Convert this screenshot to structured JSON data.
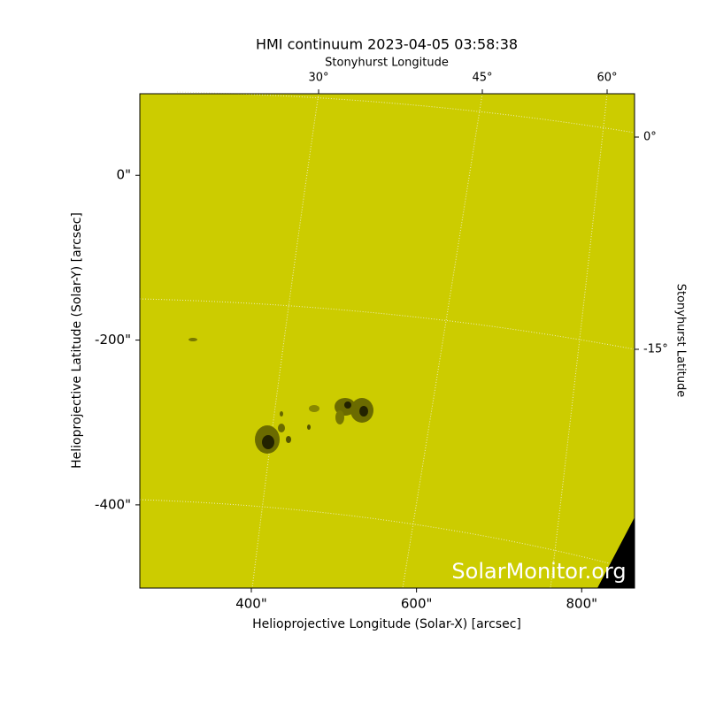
{
  "chart_data": {
    "type": "image",
    "title": "HMI continuum 2023-04-05 03:58:38",
    "xlabel": "Helioprojective Longitude (Solar-X) [arcsec]",
    "ylabel": "Helioprojective Latitude (Solar-Y) [arcsec]",
    "top_label": "Stonyhurst Longitude",
    "right_label": "Stonyhurst Latitude",
    "watermark": "SolarMonitor.org",
    "xlim": [
      265,
      864
    ],
    "ylim": [
      -501,
      99
    ],
    "xticks": [
      {
        "value": 400,
        "label": "400\""
      },
      {
        "value": 600,
        "label": "600\""
      },
      {
        "value": 800,
        "label": "800\""
      }
    ],
    "yticks": [
      {
        "value": 0,
        "label": "0\""
      },
      {
        "value": -200,
        "label": "-200\""
      },
      {
        "value": -400,
        "label": "-400\""
      }
    ],
    "top_ticks": [
      "30°",
      "45°",
      "60°"
    ],
    "right_ticks": [
      "0°",
      "-15°"
    ],
    "color": "#cccc00"
  }
}
